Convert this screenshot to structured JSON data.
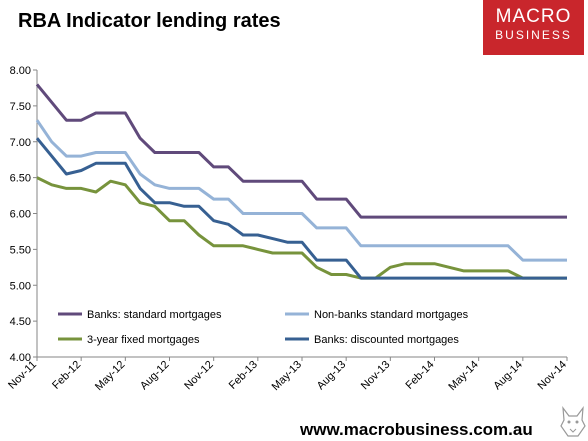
{
  "header": {
    "title": "RBA Indicator lending rates",
    "logo_line1": "MACRO",
    "logo_line2": "BUSINESS"
  },
  "footer": {
    "url": "www.macrobusiness.com.au"
  },
  "chart_data": {
    "type": "line",
    "title": "RBA Indicator lending rates",
    "xlabel": "",
    "ylabel": "",
    "ylim": [
      4.0,
      8.0
    ],
    "yticks": [
      "4.00",
      "4.50",
      "5.00",
      "5.50",
      "6.00",
      "6.50",
      "7.00",
      "7.50",
      "8.00"
    ],
    "xticks": [
      "Nov-11",
      "Feb-12",
      "May-12",
      "Aug-12",
      "Nov-12",
      "Feb-13",
      "May-13",
      "Aug-13",
      "Nov-13",
      "Feb-14",
      "May-14",
      "Aug-14",
      "Nov-14"
    ],
    "x": [
      "Nov-11",
      "Dec-11",
      "Jan-12",
      "Feb-12",
      "Mar-12",
      "Apr-12",
      "May-12",
      "Jun-12",
      "Jul-12",
      "Aug-12",
      "Sep-12",
      "Oct-12",
      "Nov-12",
      "Dec-12",
      "Jan-13",
      "Feb-13",
      "Mar-13",
      "Apr-13",
      "May-13",
      "Jun-13",
      "Jul-13",
      "Aug-13",
      "Sep-13",
      "Oct-13",
      "Nov-13",
      "Dec-13",
      "Jan-14",
      "Feb-14",
      "Mar-14",
      "Apr-14",
      "May-14",
      "Jun-14",
      "Jul-14",
      "Aug-14",
      "Sep-14",
      "Oct-14",
      "Nov-14"
    ],
    "grid": false,
    "legend": "bottom",
    "series": [
      {
        "name": "Banks:  standard mortgages",
        "color": "#604a7b",
        "values": [
          7.8,
          7.55,
          7.3,
          7.3,
          7.4,
          7.4,
          7.4,
          7.05,
          6.85,
          6.85,
          6.85,
          6.85,
          6.65,
          6.65,
          6.45,
          6.45,
          6.45,
          6.45,
          6.45,
          6.2,
          6.2,
          6.2,
          5.95,
          5.95,
          5.95,
          5.95,
          5.95,
          5.95,
          5.95,
          5.95,
          5.95,
          5.95,
          5.95,
          5.95,
          5.95,
          5.95,
          5.95
        ]
      },
      {
        "name": "Non-banks standard mortgages",
        "color": "#95b3d7",
        "values": [
          7.3,
          7.0,
          6.8,
          6.8,
          6.85,
          6.85,
          6.85,
          6.55,
          6.4,
          6.35,
          6.35,
          6.35,
          6.2,
          6.2,
          6.0,
          6.0,
          6.0,
          6.0,
          6.0,
          5.8,
          5.8,
          5.8,
          5.55,
          5.55,
          5.55,
          5.55,
          5.55,
          5.55,
          5.55,
          5.55,
          5.55,
          5.55,
          5.55,
          5.35,
          5.35,
          5.35,
          5.35
        ]
      },
      {
        "name": "3-year fixed mortgages",
        "color": "#77933c",
        "values": [
          6.5,
          6.4,
          6.35,
          6.35,
          6.3,
          6.45,
          6.4,
          6.15,
          6.1,
          5.9,
          5.9,
          5.7,
          5.55,
          5.55,
          5.55,
          5.5,
          5.45,
          5.45,
          5.45,
          5.25,
          5.15,
          5.15,
          5.1,
          5.1,
          5.25,
          5.3,
          5.3,
          5.3,
          5.25,
          5.2,
          5.2,
          5.2,
          5.2,
          5.1,
          5.1,
          5.1,
          5.1
        ]
      },
      {
        "name": "Banks: discounted mortgages",
        "color": "#376092",
        "values": [
          7.05,
          6.8,
          6.55,
          6.6,
          6.7,
          6.7,
          6.7,
          6.35,
          6.15,
          6.15,
          6.1,
          6.1,
          5.9,
          5.85,
          5.7,
          5.7,
          5.65,
          5.6,
          5.6,
          5.35,
          5.35,
          5.35,
          5.1,
          5.1,
          5.1,
          5.1,
          5.1,
          5.1,
          5.1,
          5.1,
          5.1,
          5.1,
          5.1,
          5.1,
          5.1,
          5.1,
          5.1
        ]
      }
    ]
  }
}
